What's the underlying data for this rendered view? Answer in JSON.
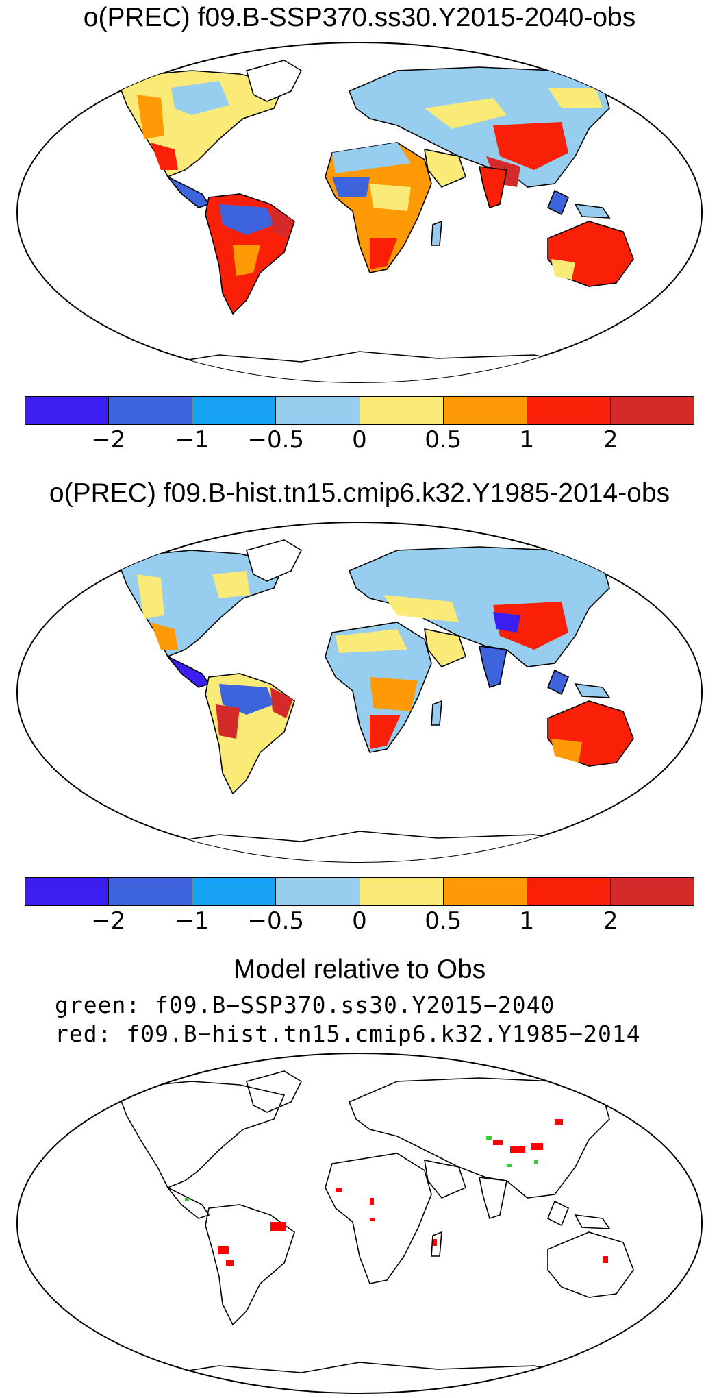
{
  "panels": [
    {
      "title": "o(PREC) f09.B-SSP370.ss30.Y2015-2040-obs"
    },
    {
      "title": "o(PREC) f09.B-hist.tn15.cmip6.k32.Y1985-2014-obs"
    }
  ],
  "colorbar": {
    "colors": [
      "#3a1ff0",
      "#3d63dd",
      "#17a2f4",
      "#97cdee",
      "#faea78",
      "#ff9a07",
      "#fa2008",
      "#d42a2a"
    ],
    "ticks": [
      "−2",
      "−1",
      "−0.5",
      "0",
      "0.5",
      "1",
      "2"
    ]
  },
  "comparison": {
    "title": "Model relative to Obs",
    "green_line": "green: f09.B−SSP370.ss30.Y2015−2040",
    "red_line": "red: f09.B−hist.tn15.cmip6.k32.Y1985−2014",
    "green_color": "#33cc33",
    "red_color": "#ff0000"
  },
  "map_colors": {
    "land_outline": "#000000",
    "ocean": "#ffffff"
  }
}
